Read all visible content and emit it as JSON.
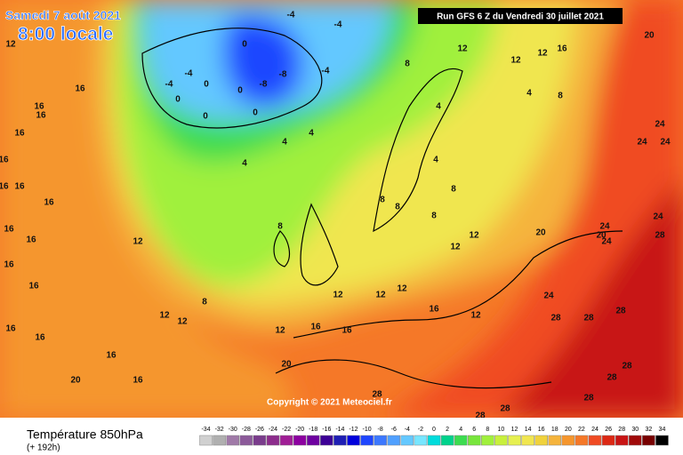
{
  "header": {
    "date": "Samedi 7 août 2021",
    "time": "8:00 locale",
    "run": "Run GFS 6 Z du Vendredi 30 juillet 2021"
  },
  "copyright": "Copyright © 2021 Meteociel.fr",
  "legend": {
    "title": "Température 850hPa",
    "subtitle": "(+ 192h)",
    "scale_values": [
      -34,
      -32,
      -30,
      -28,
      -26,
      -24,
      -22,
      -20,
      -18,
      -16,
      -14,
      -12,
      -10,
      -8,
      -6,
      -4,
      -2,
      0,
      2,
      4,
      6,
      8,
      10,
      12,
      14,
      16,
      18,
      20,
      22,
      24,
      26,
      28,
      30,
      32,
      34
    ],
    "scale_colors": [
      "#d0d0d0",
      "#b0b0b0",
      "#a07aa8",
      "#8c5a9a",
      "#7a3c8c",
      "#8c2c8c",
      "#a01e96",
      "#8c00a0",
      "#6e00a0",
      "#3c0096",
      "#1e1eb4",
      "#0000dc",
      "#1e46ff",
      "#3c78ff",
      "#50a0ff",
      "#64c8ff",
      "#78e6ff",
      "#00dcdc",
      "#00d28c",
      "#3cdc50",
      "#78e63c",
      "#a0f03c",
      "#c8f03c",
      "#e6f050",
      "#f0e650",
      "#f0d23c",
      "#f5b43c",
      "#f5962d",
      "#f57828",
      "#f04b23",
      "#dc2814",
      "#c81414",
      "#a00a0a",
      "#780000",
      "#000000"
    ]
  },
  "map": {
    "contour_labels": [
      12,
      16,
      16,
      16,
      16,
      16,
      16,
      16,
      16,
      16,
      16,
      16,
      16,
      16,
      16,
      16,
      20,
      16,
      12,
      12,
      12,
      8,
      12,
      16,
      16,
      20,
      12,
      12,
      12,
      16,
      12,
      12,
      12,
      8,
      4,
      4,
      4,
      8,
      4,
      4,
      8,
      12,
      12,
      12,
      16,
      20,
      24,
      24,
      24,
      24,
      28,
      24,
      20,
      20,
      24,
      24,
      28,
      28,
      28,
      28,
      28,
      28,
      28,
      28,
      28,
      -4,
      -4,
      0,
      0,
      -8,
      -8,
      0,
      -4,
      0,
      -4,
      -4,
      0,
      0,
      4,
      8,
      8,
      8,
      8
    ]
  }
}
